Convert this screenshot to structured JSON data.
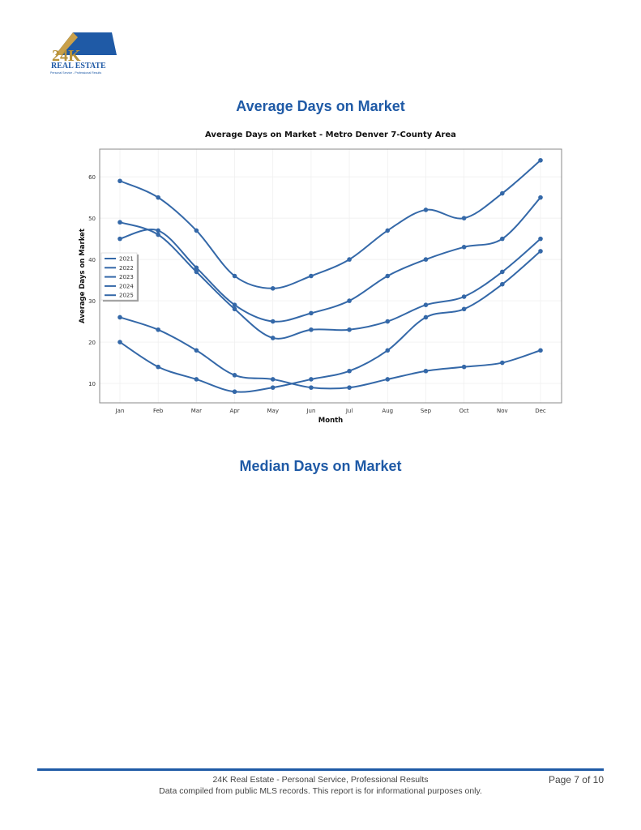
{
  "logo": {
    "text_main": "24K",
    "text_sub": "REAL ESTATE",
    "tagline": "Personal Service - Professional Results",
    "colors": {
      "gold": "#b8923a",
      "blue": "#1f5aa6"
    }
  },
  "section1_title": "Average Days on Market",
  "section2_title": "Median Days on Market",
  "chart_data": {
    "type": "line",
    "title": "Average Days on Market - Metro Denver 7-County Area",
    "xlabel": "Month",
    "ylabel": "Average Days on Market",
    "categories": [
      "Jan",
      "Feb",
      "Mar",
      "Apr",
      "May",
      "Jun",
      "Jul",
      "Aug",
      "Sep",
      "Oct",
      "Nov",
      "Dec"
    ],
    "yticks": [
      10,
      20,
      30,
      40,
      50,
      60
    ],
    "ylim": [
      5.3,
      66.7
    ],
    "grid": true,
    "legend": "left",
    "line_color": "#3468a8",
    "series": [
      {
        "name": "2021",
        "values": [
          20,
          14,
          11,
          8,
          9,
          11,
          13,
          18,
          26,
          28,
          34,
          42
        ]
      },
      {
        "name": "2022",
        "values": [
          26,
          23,
          18,
          12,
          11,
          9,
          9,
          11,
          13,
          14,
          15,
          18
        ]
      },
      {
        "name": "2023",
        "values": [
          45,
          47,
          38,
          29,
          25,
          27,
          30,
          36,
          40,
          43,
          45,
          55
        ]
      },
      {
        "name": "2024",
        "values": [
          49,
          46,
          37,
          28,
          21,
          23,
          23,
          25,
          29,
          31,
          37,
          45
        ]
      },
      {
        "name": "2025",
        "values": [
          59,
          55,
          47,
          36,
          33,
          36,
          40,
          47,
          52,
          50,
          56,
          64
        ]
      }
    ]
  },
  "footer": {
    "line1": "24K Real Estate - Personal Service, Professional Results",
    "line2": "Data compiled from public MLS records. This report is for informational purposes only.",
    "page": "Page 7 of 10"
  }
}
